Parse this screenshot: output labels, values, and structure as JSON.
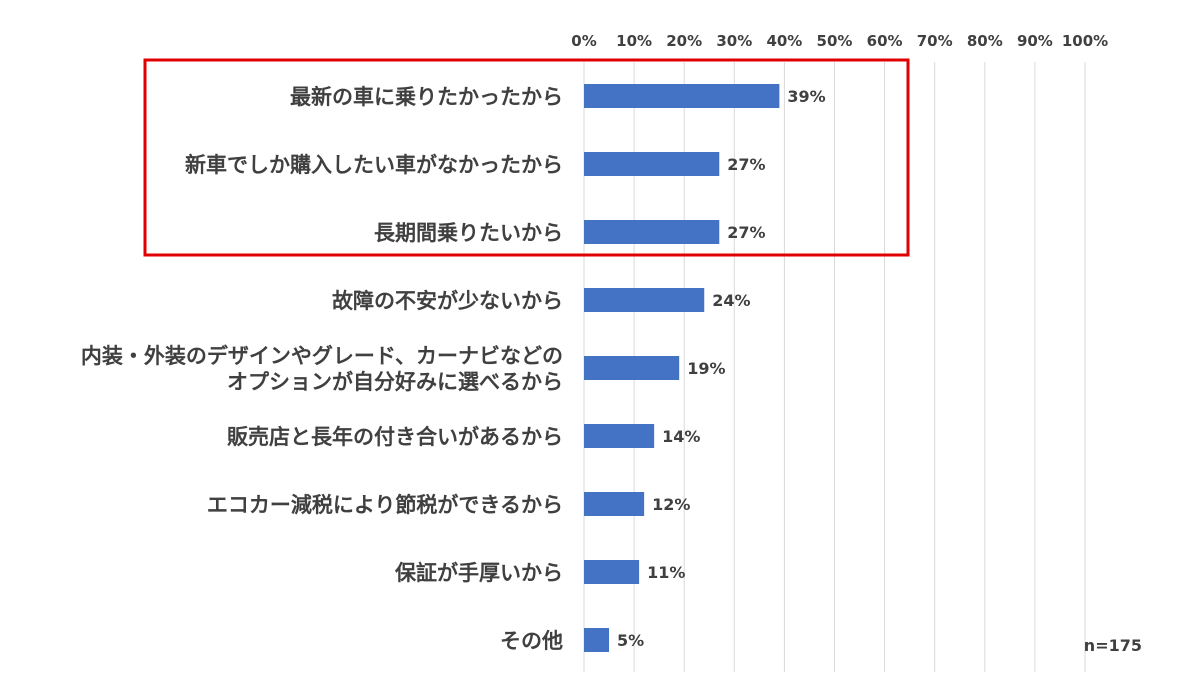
{
  "note": "n=175",
  "colors": {
    "bar": "#4472C4",
    "grid": "#d9d9d9",
    "highlight": "#e00000",
    "text": "#404040"
  },
  "chart_data": {
    "type": "bar",
    "orientation": "horizontal",
    "categories": [
      [
        "最新の車に乗りたかったから"
      ],
      [
        "新車でしか購入したい車がなかったから"
      ],
      [
        "長期間乗りたいから"
      ],
      [
        "故障の不安が少ないから"
      ],
      [
        "内装・外装のデザインやグレード、カーナビなどの",
        "オプションが自分好みに選べるから"
      ],
      [
        "販売店と長年の付き合いがあるから"
      ],
      [
        "エコカー減税により節税ができるから"
      ],
      [
        "保証が手厚いから"
      ],
      [
        "その他"
      ]
    ],
    "values": [
      39,
      27,
      27,
      24,
      19,
      14,
      12,
      11,
      5
    ],
    "value_labels": [
      "39%",
      "27%",
      "27%",
      "24%",
      "19%",
      "14%",
      "12%",
      "11%",
      "5%"
    ],
    "x_ticks": [
      "0%",
      "10%",
      "20%",
      "30%",
      "40%",
      "50%",
      "60%",
      "70%",
      "80%",
      "90%",
      "100%"
    ],
    "xlim": [
      0,
      100
    ],
    "x_axis_position": "top",
    "grid": true,
    "highlight_categories": [
      0,
      1,
      2
    ]
  }
}
